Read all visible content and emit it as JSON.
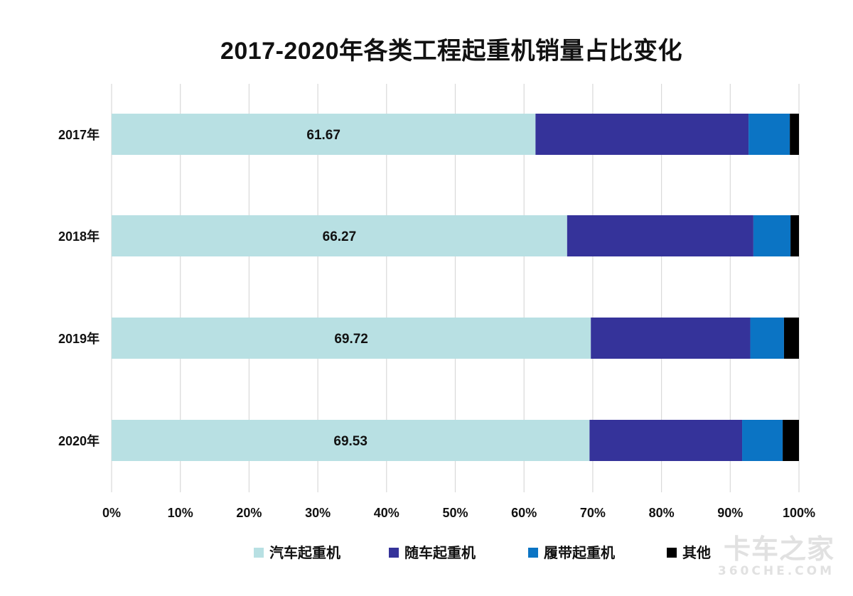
{
  "chart_data": {
    "type": "bar",
    "orientation": "horizontal",
    "stacked": "percent",
    "title": "2017-2020年各类工程起重机销量占比变化",
    "categories": [
      "2017年",
      "2018年",
      "2019年",
      "2020年"
    ],
    "series": [
      {
        "name": "汽车起重机",
        "color": "#b8e0e3",
        "values": [
          61.67,
          66.27,
          69.72,
          69.53
        ],
        "data_labels": [
          "61.67",
          "66.27",
          "69.72",
          "69.53"
        ]
      },
      {
        "name": "随车起重机",
        "color": "#35339a",
        "values": [
          31.0,
          27.1,
          23.2,
          22.2
        ]
      },
      {
        "name": "履带起重机",
        "color": "#0b74c4",
        "values": [
          6.0,
          5.4,
          4.9,
          5.9
        ]
      },
      {
        "name": "其他",
        "color": "#000000",
        "values": [
          1.33,
          1.23,
          2.18,
          2.37
        ]
      }
    ],
    "xlim": [
      0,
      100
    ],
    "x_ticks": [
      "0%",
      "10%",
      "20%",
      "30%",
      "40%",
      "50%",
      "60%",
      "70%",
      "80%",
      "90%",
      "100%"
    ],
    "grid": true,
    "legend_position": "bottom"
  },
  "watermark": {
    "text_cn": "卡车之家",
    "text_en": "360CHE.COM"
  }
}
